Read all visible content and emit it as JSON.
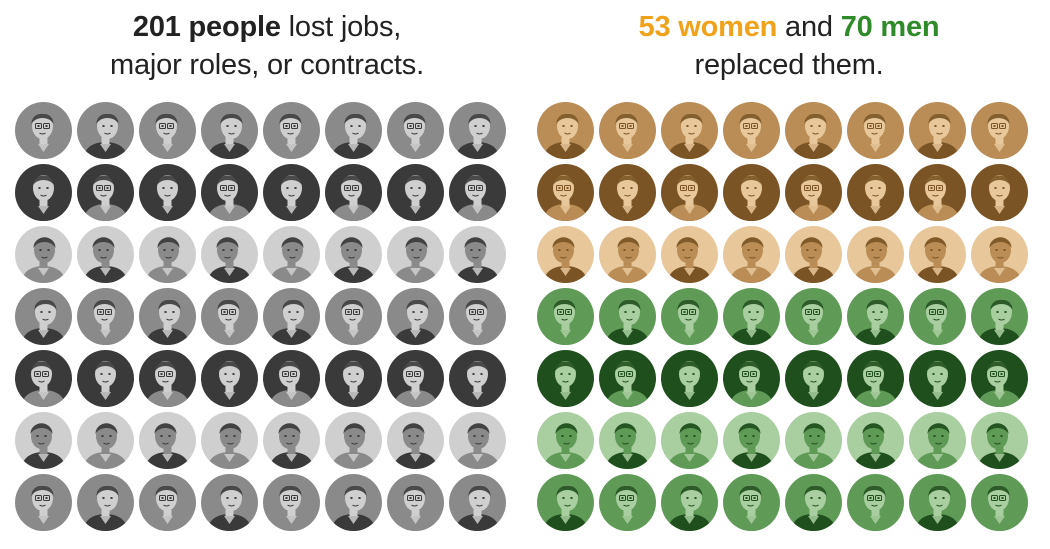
{
  "left": {
    "headline": {
      "line1_bold": "201 people",
      "line1_rest": " lost jobs,",
      "line2": "major roles, or contracts."
    },
    "grid": {
      "rows": 7,
      "cols": 8,
      "tint": "gray",
      "colors": {
        "light": "#cfcfcf",
        "mid": "#8a8a8a",
        "dark": "#3a3a3a"
      }
    }
  },
  "right": {
    "headline": {
      "women": "53 women",
      "and": " and ",
      "men": "70 men",
      "line2": "replaced them."
    },
    "grid": {
      "rows": 7,
      "cols": 8,
      "women_rows": 3,
      "men_rows": 4,
      "women_colors": {
        "light": "#e8c79a",
        "mid": "#b98d55",
        "dark": "#7a5424"
      },
      "men_colors": {
        "light": "#a9cfa0",
        "mid": "#5f9a57",
        "dark": "#1f4f1c"
      }
    }
  },
  "colors": {
    "women_accent": "#f0a21a",
    "men_accent": "#2f8a2a",
    "text": "#222222"
  }
}
